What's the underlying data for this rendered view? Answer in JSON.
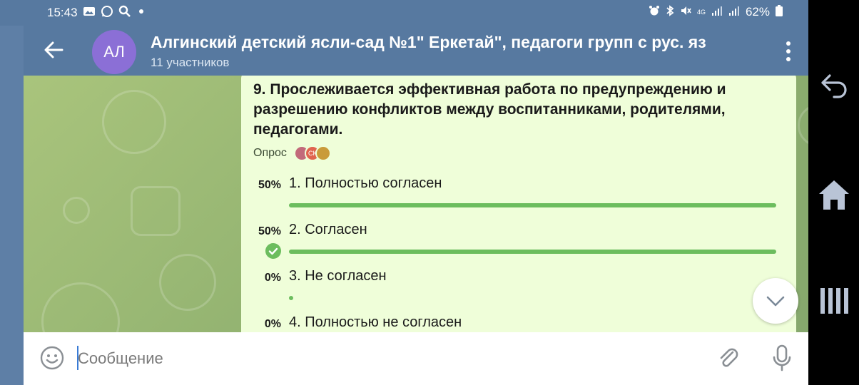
{
  "statusbar": {
    "time": "15:43",
    "battery": "62%",
    "network": "4G"
  },
  "header": {
    "avatar_initials": "АЛ",
    "title": "Алгинский детский ясли-сад №1\" Еркетай\", педагоги групп с рус. яз",
    "subtitle": "11 участников"
  },
  "poll": {
    "question": "9. Прослеживается эффективная работа по предупреждению и разрешению конфликтов между воспитанниками, родителями, педагогами.",
    "kind": "Опрос",
    "voters": [
      {
        "name": "voter-avatar-1",
        "initials": "",
        "color": "#c26a7a"
      },
      {
        "name": "voter-avatar-2",
        "initials": "СК",
        "color": "#e0644f"
      },
      {
        "name": "voter-avatar-3",
        "initials": "",
        "color": "#c99b3a"
      }
    ],
    "options": [
      {
        "percent": "50%",
        "label": "1. Полностью согласен",
        "fraction": 0.5,
        "selected": false
      },
      {
        "percent": "50%",
        "label": "2. Согласен",
        "fraction": 0.5,
        "selected": true
      },
      {
        "percent": "0%",
        "label": "3. Не согласен",
        "fraction": 0.0,
        "selected": false
      },
      {
        "percent": "0%",
        "label": "4. Полностью не согласен",
        "fraction": 0.0,
        "selected": false
      }
    ]
  },
  "input": {
    "placeholder": "Сообщение"
  },
  "colors": {
    "header": "#5779a0",
    "bubble": "#effed9",
    "bar": "#6cbd5e",
    "avatar": "#8b6fd6"
  }
}
